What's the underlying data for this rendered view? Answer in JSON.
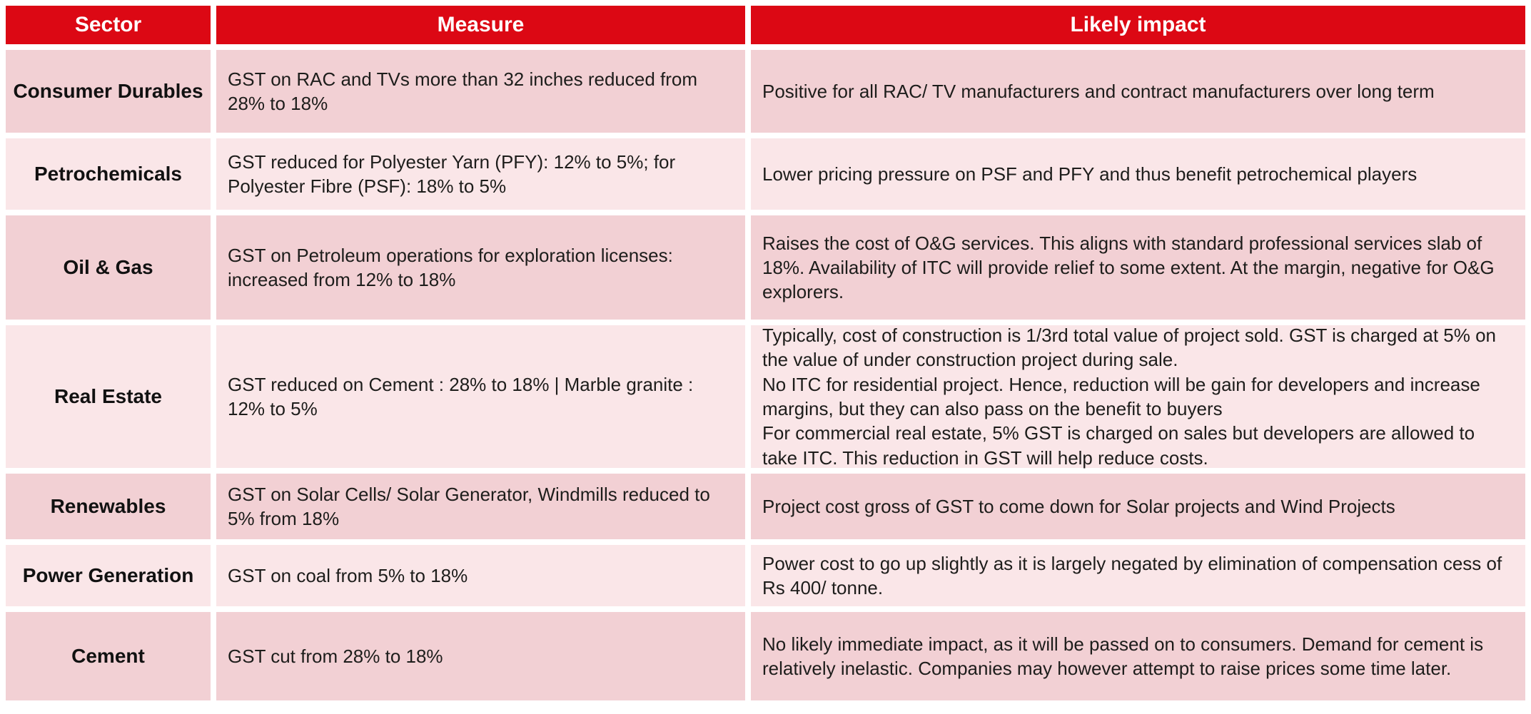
{
  "colors": {
    "header_bg": "#DC0814",
    "header_text": "#FFFFFF",
    "row_dark": "#F2D0D4",
    "row_light": "#FAE6E8",
    "body_text": "#1D1D1B"
  },
  "table": {
    "columns": [
      {
        "label": "Sector"
      },
      {
        "label": "Measure"
      },
      {
        "label": "Likely impact"
      }
    ],
    "rows": [
      {
        "sector": "Consumer Durables",
        "measure": "GST on RAC and TVs more than 32 inches reduced from 28% to 18%",
        "impact": "Positive for all RAC/ TV manufacturers and contract manufacturers over long term"
      },
      {
        "sector": "Petrochemicals",
        "measure": "GST reduced for Polyester Yarn (PFY): 12% to 5%; for Polyester Fibre (PSF): 18% to 5%",
        "impact": "Lower pricing pressure on PSF and PFY and thus benefit petrochemical players"
      },
      {
        "sector": "Oil & Gas",
        "measure": "GST on Petroleum operations for exploration licenses: increased from 12% to 18%",
        "impact": "Raises the cost of O&G services. This aligns with standard professional services slab of 18%. Availability of ITC will provide relief to some extent. At the margin, negative for O&G explorers."
      },
      {
        "sector": "Real Estate",
        "measure": "GST reduced on Cement : 28% to 18% | Marble granite : 12% to 5%",
        "impact": "Typically, cost of construction is 1/3rd total value of project sold. GST is charged at 5% on the value of under construction project during sale.\nNo ITC for residential project. Hence, reduction will be gain for developers and increase margins, but they can also pass on the benefit to buyers\nFor commercial real estate, 5% GST is charged on sales but developers are allowed to take ITC. This reduction in GST will help reduce costs."
      },
      {
        "sector": "Renewables",
        "measure": "GST on Solar Cells/ Solar Generator, Windmills reduced to 5% from 18%",
        "impact": "Project cost gross of GST to come down for Solar projects and Wind Projects"
      },
      {
        "sector": "Power Generation",
        "measure": "GST on coal from 5% to 18%",
        "impact": "Power cost to go up slightly as it is largely negated by elimination of compensation cess of Rs 400/ tonne."
      },
      {
        "sector": "Cement",
        "measure": "GST cut from 28% to 18%",
        "impact": "No likely immediate impact, as it will be passed on to consumers. Demand for cement is relatively inelastic. Companies may however attempt to raise prices some time later."
      }
    ]
  }
}
